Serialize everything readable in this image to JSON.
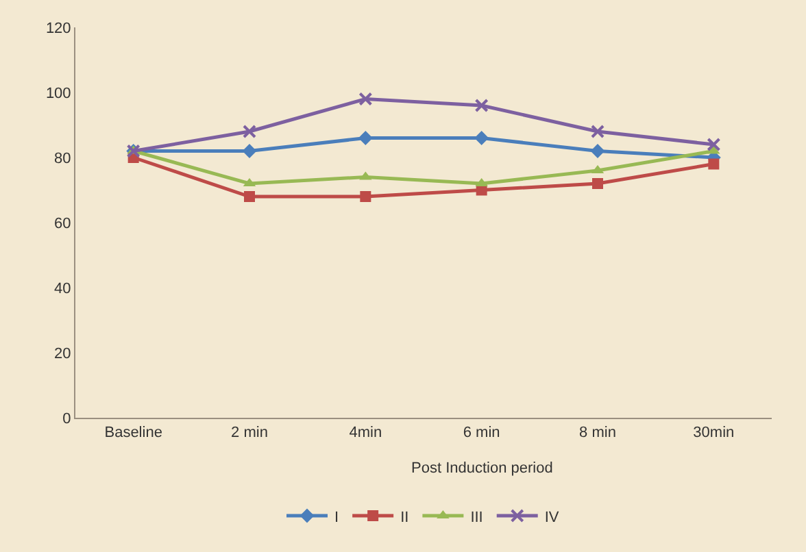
{
  "chart_data": {
    "type": "line",
    "xlabel": "Post Induction period",
    "categories": [
      "Baseline",
      "2 min",
      "4min",
      "6 min",
      "8 min",
      "30min"
    ],
    "ylim": [
      0,
      120
    ],
    "yticks": [
      0,
      20,
      40,
      60,
      80,
      100,
      120
    ],
    "grid": false,
    "legend": "bottom",
    "series": [
      {
        "name": "I",
        "color": "#4a7ebb",
        "marker": "diamond",
        "values": [
          82,
          82,
          86,
          86,
          82,
          80
        ]
      },
      {
        "name": "II",
        "color": "#be4b48",
        "marker": "square",
        "values": [
          80,
          68,
          68,
          70,
          72,
          78
        ]
      },
      {
        "name": "III",
        "color": "#98b954",
        "marker": "triangle",
        "values": [
          82,
          72,
          74,
          72,
          76,
          82
        ]
      },
      {
        "name": "IV",
        "color": "#7d60a0",
        "marker": "cross",
        "values": [
          82,
          88,
          98,
          96,
          88,
          84
        ]
      }
    ]
  }
}
